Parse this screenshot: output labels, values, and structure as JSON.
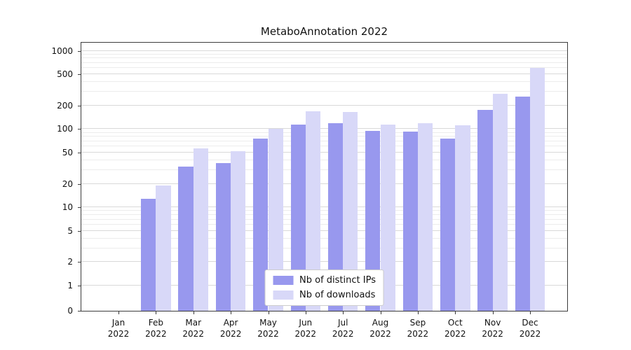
{
  "chart_data": {
    "type": "bar",
    "title": "MetaboAnnotation 2022",
    "yscale": "symlog",
    "grid": true,
    "legend_position": "lower center",
    "xlabel": "",
    "ylabel": "",
    "ylim": [
      0,
      1270
    ],
    "yticks": [
      0,
      1,
      2,
      5,
      10,
      20,
      50,
      100,
      200,
      500,
      1000
    ],
    "categories": [
      "Jan\n2022",
      "Feb\n2022",
      "Mar\n2022",
      "Apr\n2022",
      "May\n2022",
      "Jun\n2022",
      "Jul\n2022",
      "Aug\n2022",
      "Sep\n2022",
      "Oct\n2022",
      "Nov\n2022",
      "Dec\n2022"
    ],
    "series": [
      {
        "name": "Nb of distinct IPs",
        "color": "#9898ee",
        "values": [
          0,
          13,
          33,
          37,
          75,
          115,
          120,
          95,
          93,
          75,
          175,
          260
        ]
      },
      {
        "name": "Nb of downloads",
        "color": "#d8d8f8",
        "values": [
          0,
          19,
          57,
          52,
          100,
          170,
          165,
          115,
          120,
          112,
          280,
          600
        ]
      }
    ],
    "colors": {
      "major_grid": "#d9d9d9",
      "minor_grid": "#ececec",
      "axis": "#3c3c3c",
      "background": "#ffffff"
    }
  }
}
